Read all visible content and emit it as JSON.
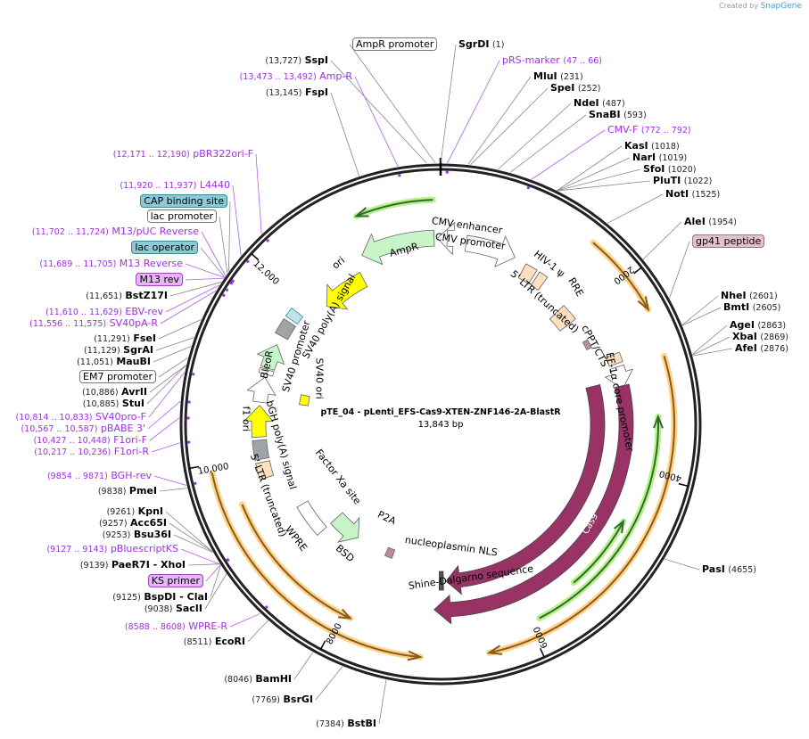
{
  "credit": {
    "created_by": "Created by",
    "brand": "SnapGene"
  },
  "plasmid": {
    "name": "pTE_04 - pLenti_EFS-Cas9-XTEN-ZNF146-2A-BlastR",
    "size_label": "13,843 bp",
    "length_bp": 13843
  },
  "ticks": [
    "2000",
    "4000",
    "6000",
    "8000",
    "10,000",
    "12,000"
  ],
  "sites": [
    {
      "name": "AmpR promoter",
      "pos": "",
      "bp": 13800,
      "type": "box-white"
    },
    {
      "name": "SgrDI",
      "pos": "(1)",
      "bp": 1,
      "type": "enzyme"
    },
    {
      "name": "SspI",
      "pos": "(13,727)",
      "bp": 13727,
      "type": "enzyme"
    },
    {
      "name": "pRS-marker",
      "pos": "(47 .. 66)",
      "bp": 56,
      "type": "primer"
    },
    {
      "name": "Amp-R",
      "pos": "(13,473 .. 13,492)",
      "bp": 13482,
      "type": "primer"
    },
    {
      "name": "MluI",
      "pos": "(231)",
      "bp": 231,
      "type": "enzyme"
    },
    {
      "name": "FspI",
      "pos": "(13,145)",
      "bp": 13145,
      "type": "enzyme"
    },
    {
      "name": "SpeI",
      "pos": "(252)",
      "bp": 252,
      "type": "enzyme"
    },
    {
      "name": "NdeI",
      "pos": "(487)",
      "bp": 487,
      "type": "enzyme"
    },
    {
      "name": "SnaBI",
      "pos": "(593)",
      "bp": 593,
      "type": "enzyme"
    },
    {
      "name": "CMV-F",
      "pos": "(772 .. 792)",
      "bp": 782,
      "type": "primer"
    },
    {
      "name": "pBR322ori-F",
      "pos": "(12,171 .. 12,190)",
      "bp": 12180,
      "type": "primer"
    },
    {
      "name": "KasI",
      "pos": "(1018)",
      "bp": 1018,
      "type": "enzyme"
    },
    {
      "name": "NarI",
      "pos": "(1019)",
      "bp": 1019,
      "type": "enzyme"
    },
    {
      "name": "SfoI",
      "pos": "(1020)",
      "bp": 1020,
      "type": "enzyme"
    },
    {
      "name": "PluTI",
      "pos": "(1022)",
      "bp": 1022,
      "type": "enzyme"
    },
    {
      "name": "L4440",
      "pos": "(11,920 .. 11,937)",
      "bp": 11928,
      "type": "primer"
    },
    {
      "name": "NotI",
      "pos": "(1525)",
      "bp": 1525,
      "type": "enzyme"
    },
    {
      "name": "CAP binding site",
      "pos": "",
      "bp": 11760,
      "type": "box-teal"
    },
    {
      "name": "lac promoter",
      "pos": "",
      "bp": 11740,
      "type": "box-white"
    },
    {
      "name": "AleI",
      "pos": "(1954)",
      "bp": 1954,
      "type": "enzyme"
    },
    {
      "name": "M13/pUC Reverse",
      "pos": "(11,702 .. 11,724)",
      "bp": 11713,
      "type": "primer"
    },
    {
      "name": "gp41 peptide",
      "pos": "",
      "bp": 2350,
      "type": "box-pink"
    },
    {
      "name": "lac operator",
      "pos": "",
      "bp": 11700,
      "type": "box-teal"
    },
    {
      "name": "M13 Reverse",
      "pos": "(11,689 .. 11,705)",
      "bp": 11697,
      "type": "primer"
    },
    {
      "name": "M13 rev",
      "pos": "",
      "bp": 11690,
      "type": "box-purple"
    },
    {
      "name": "NheI",
      "pos": "(2601)",
      "bp": 2601,
      "type": "enzyme"
    },
    {
      "name": "BmtI",
      "pos": "(2605)",
      "bp": 2605,
      "type": "enzyme"
    },
    {
      "name": "BstZ17I",
      "pos": "(11,651)",
      "bp": 11651,
      "type": "enzyme"
    },
    {
      "name": "EBV-rev",
      "pos": "(11,610 .. 11,629)",
      "bp": 11620,
      "type": "primer"
    },
    {
      "name": "SV40pA-R",
      "pos": "(11,556 .. 11,575)",
      "bp": 11565,
      "type": "primer"
    },
    {
      "name": "AgeI",
      "pos": "(2863)",
      "bp": 2863,
      "type": "enzyme"
    },
    {
      "name": "XbaI",
      "pos": "(2869)",
      "bp": 2869,
      "type": "enzyme"
    },
    {
      "name": "AfeI",
      "pos": "(2876)",
      "bp": 2876,
      "type": "enzyme"
    },
    {
      "name": "FseI",
      "pos": "(11,291)",
      "bp": 11291,
      "type": "enzyme"
    },
    {
      "name": "SgrAI",
      "pos": "(11,129)",
      "bp": 11129,
      "type": "enzyme"
    },
    {
      "name": "MauBI",
      "pos": "(11,051)",
      "bp": 11051,
      "type": "enzyme"
    },
    {
      "name": "EM7 promoter",
      "pos": "",
      "bp": 10950,
      "type": "box-white"
    },
    {
      "name": "AvrII",
      "pos": "(10,886)",
      "bp": 10886,
      "type": "enzyme"
    },
    {
      "name": "StuI",
      "pos": "(10,885)",
      "bp": 10885,
      "type": "enzyme"
    },
    {
      "name": "SV40pro-F",
      "pos": "(10,814 .. 10,833)",
      "bp": 10823,
      "type": "primer"
    },
    {
      "name": "pBABE 3'",
      "pos": "(10,567 .. 10,587)",
      "bp": 10577,
      "type": "primer"
    },
    {
      "name": "F1ori-F",
      "pos": "(10,427 .. 10,448)",
      "bp": 10437,
      "type": "primer"
    },
    {
      "name": "F1ori-R",
      "pos": "(10,217 .. 10,236)",
      "bp": 10226,
      "type": "primer"
    },
    {
      "name": "BGH-rev",
      "pos": "(9854 .. 9871)",
      "bp": 9862,
      "type": "primer"
    },
    {
      "name": "PmeI",
      "pos": "(9838)",
      "bp": 9838,
      "type": "enzyme"
    },
    {
      "name": "KpnI",
      "pos": "(9261)",
      "bp": 9261,
      "type": "enzyme"
    },
    {
      "name": "Acc65I",
      "pos": "(9257)",
      "bp": 9257,
      "type": "enzyme"
    },
    {
      "name": "Bsu36I",
      "pos": "(9253)",
      "bp": 9253,
      "type": "enzyme"
    },
    {
      "name": "pBluescriptKS",
      "pos": "(9127 .. 9143)",
      "bp": 9135,
      "type": "primer"
    },
    {
      "name": "PaeR7I  - XhoI",
      "pos": "(9139)",
      "bp": 9139,
      "type": "enzyme"
    },
    {
      "name": "KS primer",
      "pos": "",
      "bp": 9130,
      "type": "box-purple"
    },
    {
      "name": "BspDI  - ClaI",
      "pos": "(9125)",
      "bp": 9125,
      "type": "enzyme"
    },
    {
      "name": "SacII",
      "pos": "(9038)",
      "bp": 9038,
      "type": "enzyme"
    },
    {
      "name": "WPRE-R",
      "pos": "(8588 .. 8608)",
      "bp": 8598,
      "type": "primer"
    },
    {
      "name": "EcoRI",
      "pos": "(8511)",
      "bp": 8511,
      "type": "enzyme"
    },
    {
      "name": "BamHI",
      "pos": "(8046)",
      "bp": 8046,
      "type": "enzyme"
    },
    {
      "name": "BsrGI",
      "pos": "(7769)",
      "bp": 7769,
      "type": "enzyme"
    },
    {
      "name": "BstBI",
      "pos": "(7384)",
      "bp": 7384,
      "type": "enzyme"
    },
    {
      "name": "PasI",
      "pos": "(4655)",
      "bp": 4655,
      "type": "enzyme"
    }
  ],
  "features": [
    {
      "name": "AmpR",
      "color": "#c8f5c8"
    },
    {
      "name": "ori",
      "color": "#ffff00"
    },
    {
      "name": "CMV enhancer",
      "color": "#ffffff"
    },
    {
      "name": "CMV promoter",
      "color": "#ffffff"
    },
    {
      "name": "HIV-1 ψ",
      "color": "#fde0bd"
    },
    {
      "name": "5' LTR (truncated)",
      "color": "#fde0bd"
    },
    {
      "name": "RRE",
      "color": "#fde0bd"
    },
    {
      "name": "cPPT/CTS",
      "color": "#fde0bd"
    },
    {
      "name": "EF-1α core promoter",
      "color": "#ffffff"
    },
    {
      "name": "Cas9",
      "color": "#993366"
    },
    {
      "name": "Cas9",
      "color": "#993366"
    },
    {
      "name": "SV40 poly(A) signal",
      "color": "#a0a4a8"
    },
    {
      "name": "SV40 promoter",
      "color": "#ffffff"
    },
    {
      "name": "BleoR",
      "color": "#c8f5c8"
    },
    {
      "name": "SV40 ori",
      "color": "#ffff00"
    },
    {
      "name": "f1 ori",
      "color": "#ffff00"
    },
    {
      "name": "bGH poly(A) signal",
      "color": "#a0a4a8"
    },
    {
      "name": "5' LTR (truncated)",
      "color": "#fde0bd"
    },
    {
      "name": "Factor Xa site",
      "color": "#ffffff"
    },
    {
      "name": "WPRE",
      "color": "#ffffff"
    },
    {
      "name": "BSD",
      "color": "#c8f5c8"
    },
    {
      "name": "P2A",
      "color": "#c08aa0"
    },
    {
      "name": "nucleoplasmin NLS",
      "color": "#993366"
    },
    {
      "name": "Shine-Dalgarno sequence",
      "color": "#ffffff"
    }
  ]
}
